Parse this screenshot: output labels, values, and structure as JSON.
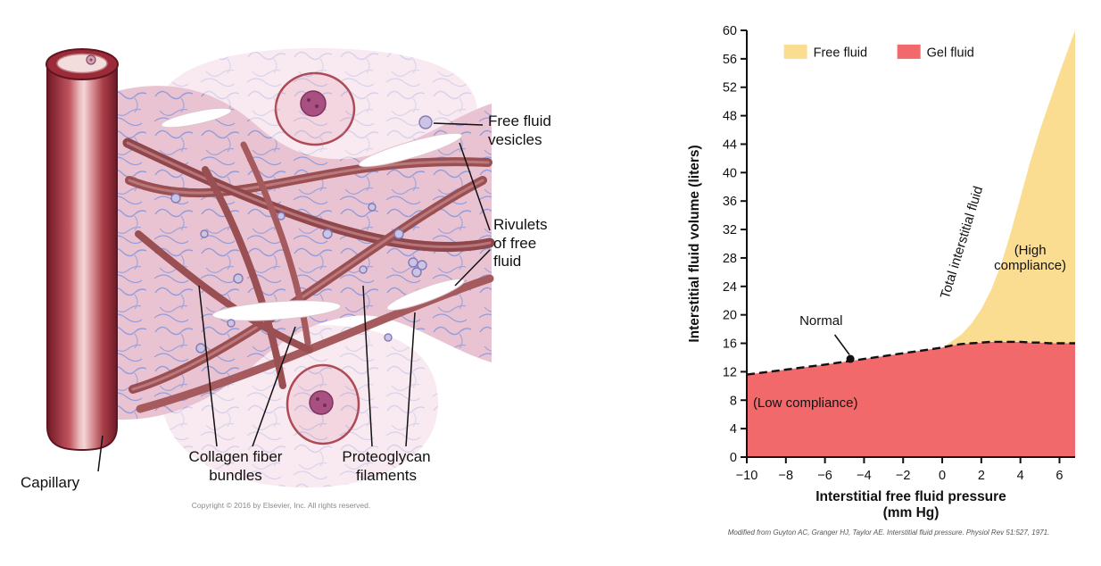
{
  "figure": {
    "left_panel": {
      "labels": {
        "capillary": "Capillary",
        "free_fluid_vesicles": "Free fluid vesicles",
        "rivulets_of_free_fluid": "Rivulets of free fluid",
        "collagen_fiber_bundles": "Collagen fiber bundles",
        "proteoglycan_filaments": "Proteoglycan filaments"
      },
      "copyright": "Copyright © 2016 by Elsevier, Inc. All rights reserved."
    },
    "right_panel": {
      "citation": "Modified from Guyton AC, Granger HJ, Taylor AE. Interstitial fluid pressure. Physiol Rev 51:527, 1971."
    }
  },
  "chart_data": {
    "type": "area",
    "title": "",
    "xlabel": "Interstitial free fluid pressure",
    "xlabel_unit": "(mm Hg)",
    "ylabel": "Interstitial fluid volume (liters)",
    "xlim": [
      -10,
      6.8
    ],
    "ylim": [
      0,
      60
    ],
    "x_ticks": [
      -10,
      -8,
      -6,
      -4,
      -2,
      0,
      2,
      4,
      6
    ],
    "y_ticks": [
      0,
      4,
      8,
      12,
      16,
      20,
      24,
      28,
      32,
      36,
      40,
      44,
      48,
      52,
      56,
      60
    ],
    "grid": false,
    "x": [
      -10,
      -8,
      -6,
      -4,
      -2,
      0,
      0.5,
      1,
      1.5,
      2,
      2.5,
      3,
      3.5,
      4,
      4.5,
      5,
      5.5,
      6,
      6.4,
      6.8
    ],
    "series": [
      {
        "name": "Gel fluid",
        "color": "#F2696C",
        "values": [
          11.6,
          12.3,
          13.0,
          13.8,
          14.6,
          15.4,
          15.7,
          15.9,
          16.0,
          16.1,
          16.2,
          16.2,
          16.2,
          16.2,
          16.1,
          16.1,
          16.0,
          16.0,
          16.0,
          16.0
        ]
      },
      {
        "name": "Total interstitial fluid",
        "color": "#FBDD92",
        "values": [
          11.6,
          12.3,
          13.0,
          13.8,
          14.6,
          15.4,
          16.3,
          17.3,
          18.8,
          20.8,
          23.5,
          27.0,
          31.5,
          36.5,
          41.5,
          46.0,
          50.0,
          54.0,
          57.0,
          60.0
        ]
      }
    ],
    "free_fluid_color": "#FBDD92",
    "gel_fluid_color": "#F2696C",
    "legend": [
      {
        "label": "Free fluid",
        "color": "#FBDD92",
        "x": -8.1
      },
      {
        "label": "Gel fluid",
        "color": "#F2696C",
        "x": -2.3
      }
    ],
    "legend_y": 58.0,
    "legend_position": "top-inside",
    "annotations": [
      {
        "id": "normal",
        "lines": [
          "Normal"
        ],
        "x": -6.2,
        "y": 18.6,
        "pointer": {
          "x1": -5.5,
          "y1": 17.2,
          "x2": -4.75,
          "y2": 14.4
        },
        "dot": {
          "x": -4.7,
          "y": 13.8
        }
      },
      {
        "id": "total-interstitial-fluid",
        "lines": [
          "Total interstitial fluid"
        ],
        "x": 1.2,
        "y": 30.0,
        "rotation": -73
      },
      {
        "id": "high-compliance",
        "lines": [
          "(High",
          "compliance)"
        ],
        "x": 4.5,
        "y": 28.5
      },
      {
        "id": "low-compliance",
        "lines": [
          "(Low compliance)"
        ],
        "x": -7.0,
        "y": 7.0
      }
    ]
  }
}
